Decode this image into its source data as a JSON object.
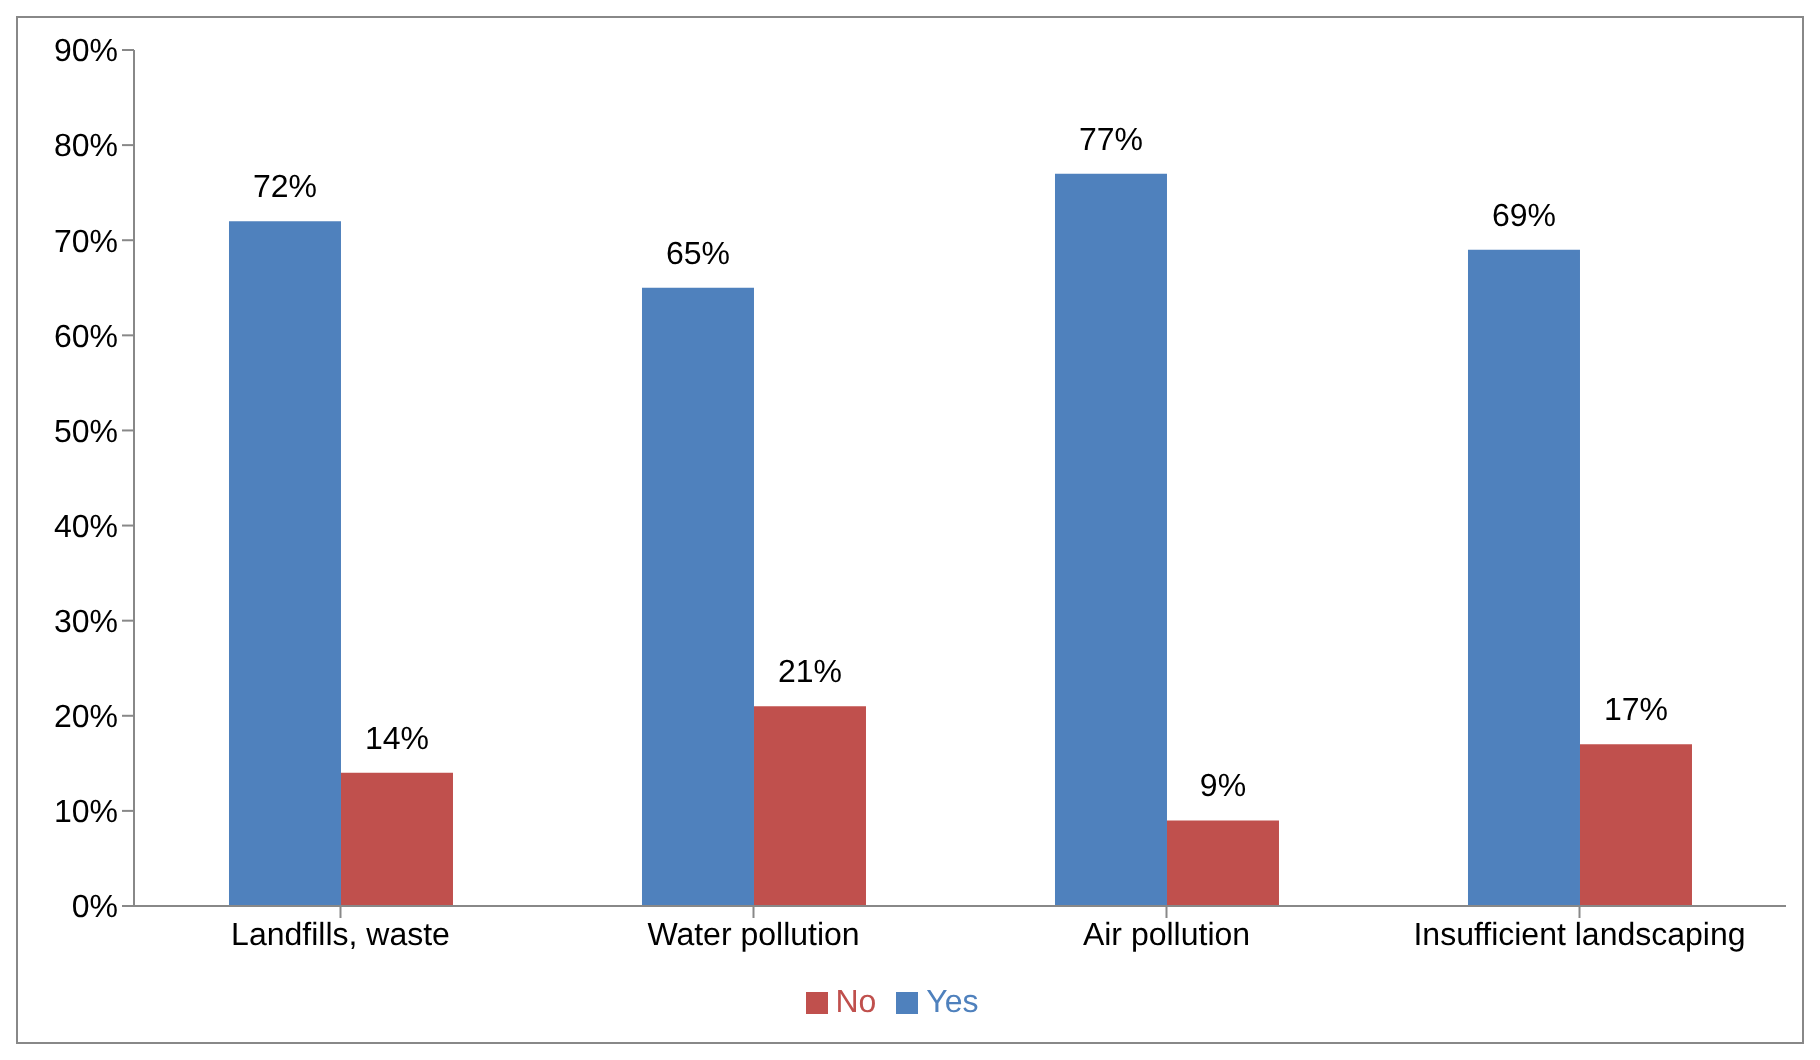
{
  "chart_data": {
    "type": "bar",
    "categories": [
      "Landfills, waste",
      "Water pollution",
      "Air pollution",
      "Insufficient landscaping"
    ],
    "series": [
      {
        "name": "Yes",
        "color": "#4f81bd",
        "values": [
          72,
          65,
          77,
          69
        ],
        "value_labels": [
          "72%",
          "65%",
          "77%",
          "69%"
        ]
      },
      {
        "name": "No",
        "color": "#c0504d",
        "values": [
          14,
          21,
          9,
          17
        ],
        "value_labels": [
          "14%",
          "21%",
          "9%",
          "17%"
        ]
      }
    ],
    "ylim": [
      0,
      90
    ],
    "yticks": [
      {
        "value": 0,
        "label": "0%"
      },
      {
        "value": 10,
        "label": "10%"
      },
      {
        "value": 20,
        "label": "20%"
      },
      {
        "value": 30,
        "label": "30%"
      },
      {
        "value": 40,
        "label": "40%"
      },
      {
        "value": 50,
        "label": "50%"
      },
      {
        "value": 60,
        "label": "60%"
      },
      {
        "value": 70,
        "label": "70%"
      },
      {
        "value": 80,
        "label": "80%"
      },
      {
        "value": 90,
        "label": "90%"
      }
    ],
    "grid": false,
    "legend": "bottom"
  }
}
